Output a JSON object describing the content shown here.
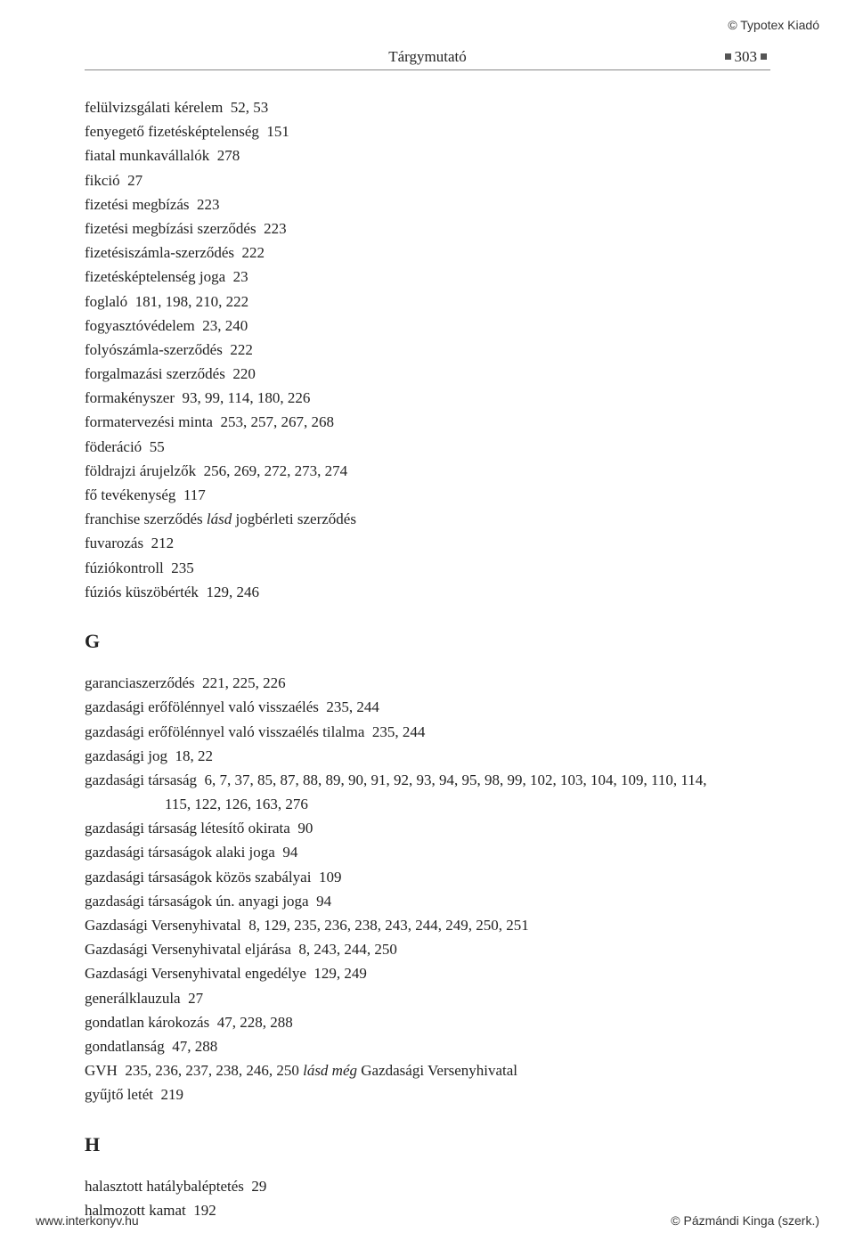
{
  "meta": {
    "publisher_top": "© Typotex Kiadó",
    "running_head_center": "Tárgymutató",
    "page_number": "303",
    "footer_left": "www.interkonyv.hu",
    "footer_right": "© Pázmándi Kinga (szerk.)"
  },
  "style": {
    "body_fontsize_pt": 12,
    "heading_fontsize_pt": 16,
    "text_color": "#222222",
    "rule_color": "#888888",
    "square_color": "#555555",
    "background_color": "#ffffff",
    "line_height": 1.6
  },
  "block_f": [
    {
      "term": "felülvizsgálati kérelem",
      "pages": "52, 53"
    },
    {
      "term": "fenyegető fizetésképtelenség",
      "pages": "151"
    },
    {
      "term": "fiatal munkavállalók",
      "pages": "278"
    },
    {
      "term": "fikció",
      "pages": "27"
    },
    {
      "term": "fizetési megbízás",
      "pages": "223"
    },
    {
      "term": "fizetési megbízási szerződés",
      "pages": "223"
    },
    {
      "term": "fizetésiszámla-szerződés",
      "pages": "222"
    },
    {
      "term": "fizetésképtelenség joga",
      "pages": "23"
    },
    {
      "term": "foglaló",
      "pages": "181, 198, 210, 222"
    },
    {
      "term": "fogyasztóvédelem",
      "pages": "23, 240"
    },
    {
      "term": "folyószámla-szerződés",
      "pages": "222"
    },
    {
      "term": "forgalmazási szerződés",
      "pages": "220"
    },
    {
      "term": "formakényszer",
      "pages": "93, 99, 114, 180, 226"
    },
    {
      "term": "formatervezési minta",
      "pages": "253, 257, 267, 268"
    },
    {
      "term": "föderáció",
      "pages": "55"
    },
    {
      "term": "földrajzi árujelzők",
      "pages": "256, 269, 272, 273, 274"
    },
    {
      "term": "fő tevékenység",
      "pages": "117"
    },
    {
      "term": "franchise szerződés",
      "see": "lásd",
      "see_target": "jogbérleti szerződés"
    },
    {
      "term": "fuvarozás",
      "pages": "212"
    },
    {
      "term": "fúziókontroll",
      "pages": "235"
    },
    {
      "term": "fúziós küszöbérték",
      "pages": "129, 246"
    }
  ],
  "letter_g": "G",
  "block_g": [
    {
      "term": "garanciaszerződés",
      "pages": "221, 225, 226"
    },
    {
      "term": "gazdasági erőfölénnyel való visszaélés",
      "pages": "235, 244"
    },
    {
      "term": "gazdasági erőfölénnyel való visszaélés tilalma",
      "pages": "235, 244"
    },
    {
      "term": "gazdasági jog",
      "pages": "18, 22"
    },
    {
      "term": "gazdasági társaság",
      "pages": "6, 7, 37, 85, 87, 88, 89, 90, 91, 92, 93, 94, 95, 98, 99, 102, 103, 104, 109, 110, 114,",
      "cont": "115, 122, 126, 163, 276"
    },
    {
      "term": "gazdasági társaság létesítő okirata",
      "pages": "90"
    },
    {
      "term": "gazdasági társaságok alaki joga",
      "pages": "94"
    },
    {
      "term": "gazdasági társaságok közös szabályai",
      "pages": "109"
    },
    {
      "term": "gazdasági társaságok ún. anyagi joga",
      "pages": "94"
    },
    {
      "term": "Gazdasági Versenyhivatal",
      "pages": "8, 129, 235, 236, 238, 243, 244, 249, 250, 251"
    },
    {
      "term": "Gazdasági Versenyhivatal eljárása",
      "pages": "8, 243, 244, 250"
    },
    {
      "term": "Gazdasági Versenyhivatal engedélye",
      "pages": "129, 249"
    },
    {
      "term": "generálklauzula",
      "pages": "27"
    },
    {
      "term": "gondatlan károkozás",
      "pages": "47, 228, 288"
    },
    {
      "term": "gondatlanság",
      "pages": "47, 288"
    },
    {
      "term": "GVH",
      "pages": "235, 236, 237, 238, 246, 250",
      "see": "lásd még",
      "see_target": "Gazdasági Versenyhivatal"
    },
    {
      "term": "gyűjtő letét",
      "pages": "219"
    }
  ],
  "letter_h": "H",
  "block_h": [
    {
      "term": "halasztott hatálybaléptetés",
      "pages": "29"
    },
    {
      "term": "halmozott kamat",
      "pages": "192"
    }
  ]
}
